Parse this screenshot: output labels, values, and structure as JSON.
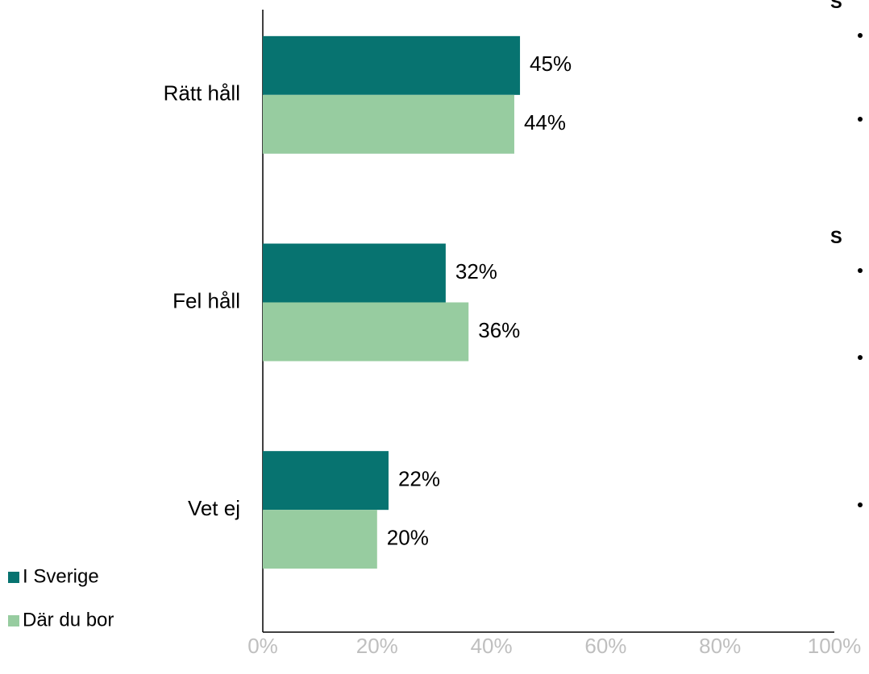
{
  "chart_data": {
    "type": "bar",
    "orientation": "horizontal",
    "categories": [
      "Rätt håll",
      "Fel håll",
      "Vet ej"
    ],
    "series": [
      {
        "name": "I Sverige",
        "color": "#077370",
        "values": [
          45,
          32,
          22
        ],
        "value_labels": [
          "45%",
          "32%",
          "22%"
        ]
      },
      {
        "name": "Där du bor",
        "color": "#97cca0",
        "values": [
          44,
          36,
          20
        ],
        "value_labels": [
          "44%",
          "36%",
          "20%"
        ]
      }
    ],
    "xlim": [
      0,
      100
    ],
    "xticks": [
      {
        "value": 0,
        "label": "0%"
      },
      {
        "value": 20,
        "label": "20%"
      },
      {
        "value": 40,
        "label": "40%"
      },
      {
        "value": 60,
        "label": "60%"
      },
      {
        "value": 80,
        "label": "80%"
      },
      {
        "value": 100,
        "label": "100%"
      }
    ],
    "legend": "bottom-left",
    "annotations": [
      "S",
      "S"
    ]
  }
}
